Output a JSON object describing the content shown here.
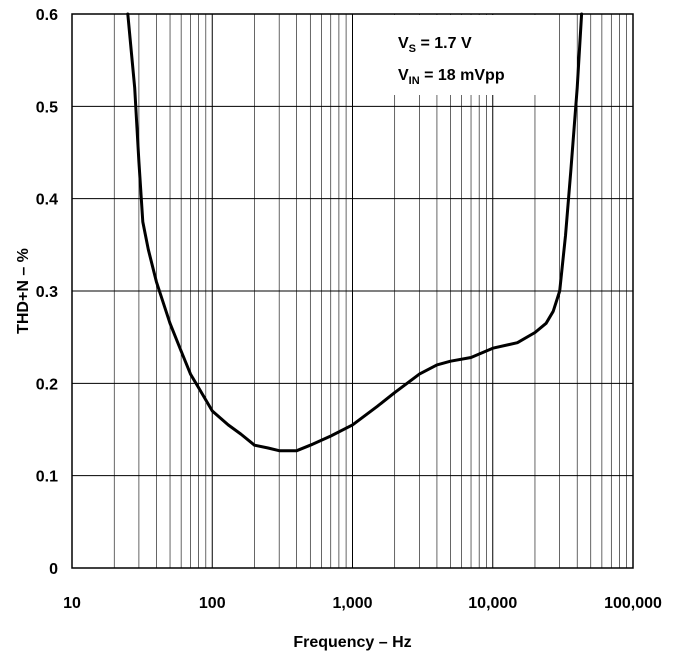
{
  "chart_data": {
    "type": "line",
    "title": "",
    "xlabel": "Frequency – Hz",
    "ylabel": "THD+N – %",
    "xscale": "log",
    "xlim": [
      10,
      100000
    ],
    "ylim": [
      0,
      0.6
    ],
    "grid": true,
    "x_ticks": [
      10,
      100,
      1000,
      10000,
      100000
    ],
    "x_tick_labels": [
      "10",
      "100",
      "1,000",
      "10,000",
      "100,000"
    ],
    "y_ticks": [
      0,
      0.1,
      0.2,
      0.3,
      0.4,
      0.5,
      0.6
    ],
    "y_tick_labels": [
      "0",
      "0.1",
      "0.2",
      "0.3",
      "0.4",
      "0.5",
      "0.6"
    ],
    "annotations": [
      {
        "main": "V",
        "sub": "S",
        "rest": " = 1.7 V"
      },
      {
        "main": "V",
        "sub": "IN",
        "rest": " = 18 mVpp"
      }
    ],
    "series": [
      {
        "color": "#000000",
        "x": [
          25,
          28,
          30,
          32,
          35,
          40,
          50,
          60,
          70,
          80,
          100,
          130,
          160,
          200,
          250,
          300,
          400,
          500,
          700,
          1000,
          1500,
          2000,
          3000,
          4000,
          5000,
          7000,
          10000,
          15000,
          20000,
          24000,
          27000,
          30000,
          33000,
          36000,
          40000,
          43000
        ],
        "y": [
          0.6,
          0.52,
          0.44,
          0.375,
          0.345,
          0.31,
          0.265,
          0.235,
          0.21,
          0.195,
          0.17,
          0.155,
          0.145,
          0.133,
          0.13,
          0.127,
          0.127,
          0.133,
          0.143,
          0.155,
          0.175,
          0.19,
          0.21,
          0.22,
          0.224,
          0.228,
          0.238,
          0.244,
          0.255,
          0.265,
          0.278,
          0.3,
          0.36,
          0.43,
          0.52,
          0.6
        ]
      }
    ]
  }
}
